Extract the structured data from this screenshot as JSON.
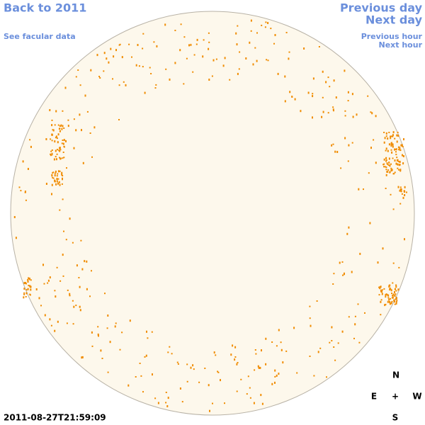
{
  "nav": {
    "back": "Back to 2011",
    "facular_data": "See facular data",
    "previous_day": "Previous day",
    "next_day": "Next day",
    "previous_hour": "Previous hour",
    "next_hour": "Next hour"
  },
  "timestamp": "2011-08-27T21:59:09",
  "compass": {
    "north": "N",
    "east": "E",
    "center": "+",
    "west": "W",
    "south": "S"
  }
}
